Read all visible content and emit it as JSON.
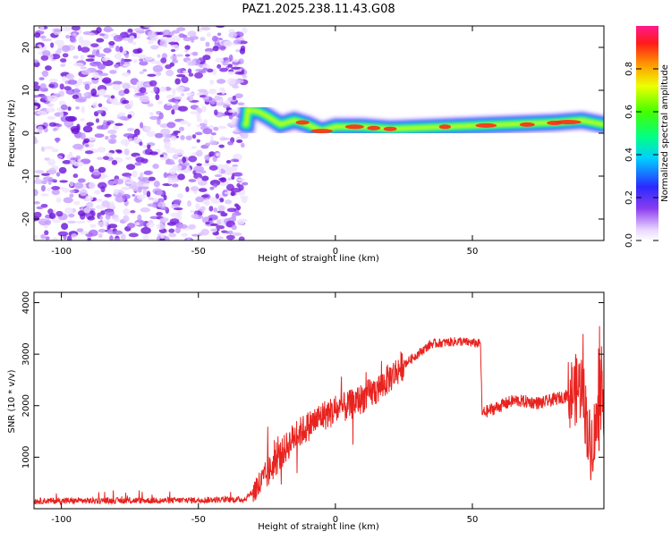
{
  "title": "PAZ1.2025.238.11.43.G08",
  "colors": {
    "snr_line": "#e8231f",
    "axis": "#000000",
    "scatter": "#7a24e0"
  },
  "chart_data": [
    {
      "type": "heatmap",
      "xlabel": "Height of straight line (km)",
      "ylabel": "Frequency (Hz)",
      "xlim": [
        -110,
        98
      ],
      "ylim": [
        -25,
        25
      ],
      "xticks": [
        -100,
        -50,
        0,
        50
      ],
      "yticks": [
        -20,
        -10,
        0,
        10,
        20
      ],
      "colorbar": {
        "label": "Normalized spectral amplitude",
        "range": [
          0,
          1
        ],
        "ticks": [
          "0.0",
          "0.2",
          "0.4",
          "0.6",
          "0.8"
        ]
      },
      "ridge": [
        [
          -32,
          5.5
        ],
        [
          -28,
          5
        ],
        [
          -25,
          4
        ],
        [
          -20,
          2
        ],
        [
          -15,
          3
        ],
        [
          -10,
          2
        ],
        [
          -5,
          0.5
        ],
        [
          0,
          1.5
        ],
        [
          10,
          1.5
        ],
        [
          20,
          1
        ],
        [
          40,
          1.5
        ],
        [
          60,
          2
        ],
        [
          80,
          2.5
        ],
        [
          90,
          3
        ],
        [
          98,
          2
        ]
      ]
    },
    {
      "type": "line",
      "xlabel": "Height of straight line (km)",
      "ylabel": "SNR (10 * v/v)",
      "xlim": [
        -110,
        98
      ],
      "ylim": [
        0,
        4200
      ],
      "xticks": [
        -100,
        -50,
        0,
        50
      ],
      "yticks": [
        1000,
        2000,
        3000,
        4000
      ],
      "series": [
        {
          "name": "SNR",
          "anchors": [
            [
              -110,
              150
            ],
            [
              -60,
              160
            ],
            [
              -33,
              180
            ],
            [
              -27,
              500
            ],
            [
              -22,
              900
            ],
            [
              -15,
              1400
            ],
            [
              -5,
              1800
            ],
            [
              5,
              2000
            ],
            [
              15,
              2300
            ],
            [
              25,
              2800
            ],
            [
              35,
              3200
            ],
            [
              45,
              3250
            ],
            [
              53,
              3200
            ],
            [
              53.5,
              1850
            ],
            [
              65,
              2100
            ],
            [
              75,
              2050
            ],
            [
              85,
              2200
            ],
            [
              90,
              2400
            ],
            [
              93,
              1200
            ],
            [
              98,
              2100
            ]
          ]
        }
      ]
    }
  ]
}
